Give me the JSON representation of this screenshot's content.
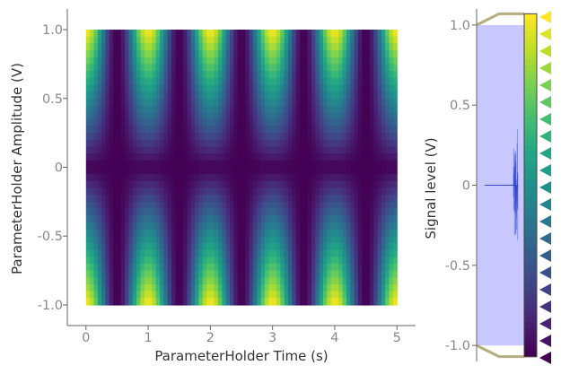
{
  "chart_data": [
    {
      "type": "heatmap",
      "title": "",
      "xlabel": "ParameterHolder Time (s)",
      "ylabel": "ParameterHolder Amplitude (V)",
      "xlim": [
        -0.3,
        5.3
      ],
      "ylim": [
        -1.15,
        1.15
      ],
      "x_extent": [
        0,
        5
      ],
      "y_extent": [
        -1,
        1
      ],
      "x_ticks": [
        0,
        1,
        2,
        3,
        4,
        5
      ],
      "x_tick_labels": [
        "0",
        "1",
        "2",
        "3",
        "4",
        "5"
      ],
      "y_ticks": [
        1.0,
        0.5,
        0,
        -0.5,
        -1.0
      ],
      "y_tick_labels": [
        "1.0",
        "0.5",
        "0",
        "-0.5",
        "-1.0"
      ],
      "function": "abs(amplitude) * (1 + cos(2*pi*time)) / 2",
      "signal_frequency_hz": 1,
      "colormap": "viridis",
      "grid": false
    },
    {
      "type": "area",
      "title": "",
      "xlabel": "",
      "ylabel": "Signal level (V)",
      "ylim": [
        -1.1,
        1.1
      ],
      "y_ticks": [
        1.0,
        0.5,
        0,
        -0.5,
        -1.0
      ],
      "y_tick_labels": [
        "1.0",
        "0.5",
        "0",
        "-0.5",
        "-1.0"
      ],
      "range_band": [
        -1.0,
        1.0
      ],
      "band_color": "#c8c8ff",
      "colorbar_colormap": "viridis",
      "colorbar_range": [
        -1.0,
        1.0
      ],
      "color_markers": 21,
      "grid": false
    }
  ],
  "colors": {
    "band": "#c8c8ff",
    "signal_trace": "#3344cc",
    "handle": "#b5ad80",
    "axis": "#666666"
  }
}
